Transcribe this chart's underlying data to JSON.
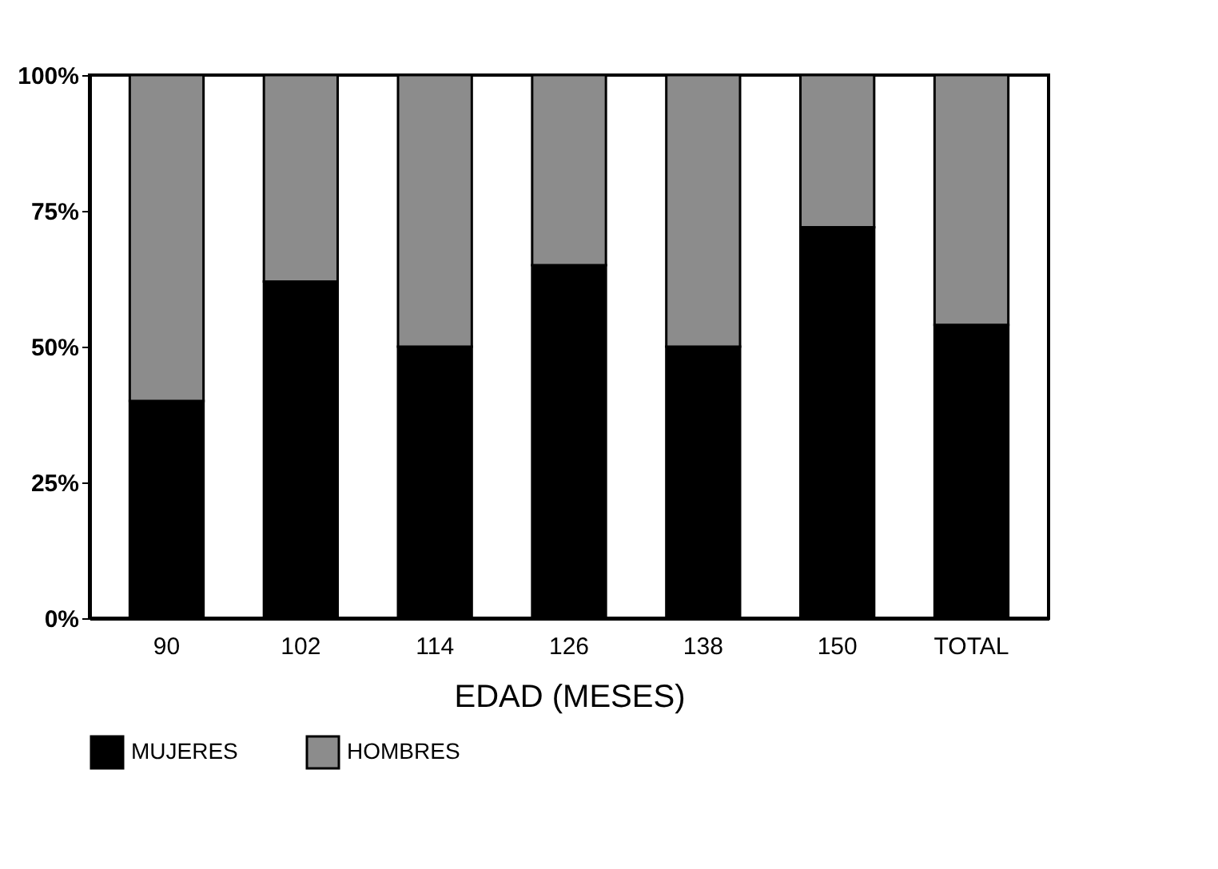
{
  "chart_data": {
    "type": "bar",
    "stacked": true,
    "xlabel": "EDAD (MESES)",
    "categories": [
      "90",
      "102",
      "114",
      "126",
      "138",
      "150",
      "TOTAL"
    ],
    "series": [
      {
        "name": "MUJERES",
        "color": "#000000",
        "values": [
          40,
          62,
          50,
          65,
          50,
          72,
          54
        ]
      },
      {
        "name": "HOMBRES",
        "color": "#8c8c8c",
        "values": [
          60,
          38,
          50,
          35,
          50,
          28,
          46
        ]
      }
    ],
    "ylim": [
      0,
      100
    ],
    "yticks": [
      {
        "value": 0,
        "label": "0%"
      },
      {
        "value": 25,
        "label": "25%"
      },
      {
        "value": 50,
        "label": "50%"
      },
      {
        "value": 75,
        "label": "75%"
      },
      {
        "value": 100,
        "label": "100%"
      }
    ],
    "grid": false,
    "legend": "bottom"
  }
}
